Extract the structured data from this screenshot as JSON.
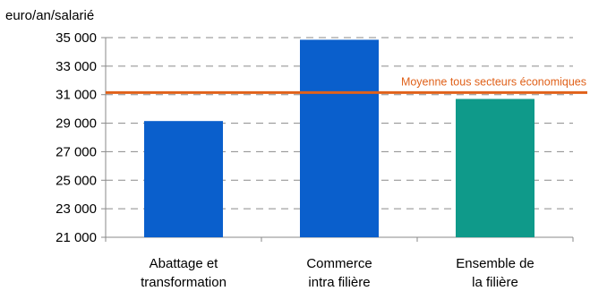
{
  "chart_data": {
    "type": "bar",
    "unit_label": "euro/an/salarié",
    "categories": [
      [
        "Abattage et",
        "transformation"
      ],
      [
        "Commerce",
        "intra filière"
      ],
      [
        "Ensemble de",
        "la filière"
      ]
    ],
    "values": [
      29150,
      34850,
      30700
    ],
    "bar_colors": [
      "#0a5fcc",
      "#0a5fcc",
      "#0f9a8a"
    ],
    "ylim": [
      21000,
      35000
    ],
    "yticks": [
      21000,
      23000,
      25000,
      27000,
      29000,
      31000,
      33000,
      35000
    ],
    "ytick_labels": [
      "21 000",
      "23 000",
      "25 000",
      "27 000",
      "29 000",
      "31 000",
      "33 000",
      "35 000"
    ],
    "grid": "dashed-horizontal",
    "reference_line": {
      "label": "Moyenne tous secteurs économiques",
      "value": 31150,
      "color": "#e0611a"
    }
  }
}
